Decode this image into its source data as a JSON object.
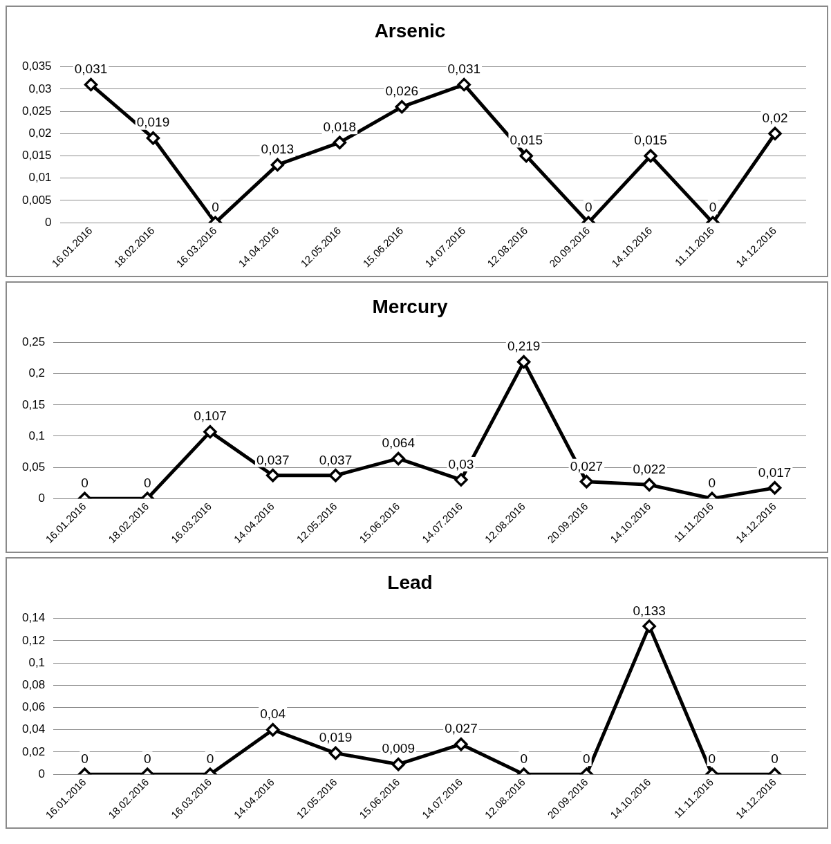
{
  "chart_data": [
    {
      "type": "line",
      "title": "Arsenic",
      "categories": [
        "16.01.2016",
        "18.02.2016",
        "16.03.2016",
        "14.04.2016",
        "12.05.2016",
        "15.06.2016",
        "14.07.2016",
        "12.08.2016",
        "20.09.2016",
        "14.10.2016",
        "11.11.2016",
        "14.12.2016"
      ],
      "series": [
        {
          "color": "#000000",
          "values": [
            0.031,
            0.019,
            0,
            0.013,
            0.018,
            0.026,
            0.031,
            0.015,
            0,
            0.015,
            0,
            0.02
          ],
          "value_labels": [
            "0,031",
            "0,019",
            "0",
            "0,013",
            "0,018",
            "0,026",
            "0,031",
            "0,015",
            "0",
            "0,015",
            "0",
            "0,02"
          ]
        }
      ],
      "ylim": [
        0,
        0.035
      ],
      "yticks": [
        {
          "value": 0,
          "label": "0"
        },
        {
          "value": 0.005,
          "label": "0,005"
        },
        {
          "value": 0.01,
          "label": "0,01"
        },
        {
          "value": 0.015,
          "label": "0,015"
        },
        {
          "value": 0.02,
          "label": "0,02"
        },
        {
          "value": 0.025,
          "label": "0,025"
        },
        {
          "value": 0.03,
          "label": "0,03"
        },
        {
          "value": 0.035,
          "label": "0,035"
        }
      ],
      "grid": "y",
      "legend": false,
      "marker": "diamond",
      "line_style": "solid"
    },
    {
      "type": "line",
      "title": "Mercury",
      "categories": [
        "16.01.2016",
        "18.02.2016",
        "16.03.2016",
        "14.04.2016",
        "12.05.2016",
        "15.06.2016",
        "14.07.2016",
        "12.08.2016",
        "20.09.2016",
        "14.10.2016",
        "11.11.2016",
        "14.12.2016"
      ],
      "series": [
        {
          "color": "#000000",
          "values": [
            0,
            0,
            0.107,
            0.037,
            0.037,
            0.064,
            0.03,
            0.219,
            0.027,
            0.022,
            0,
            0.017
          ],
          "value_labels": [
            "0",
            "0",
            "0,107",
            "0,037",
            "0,037",
            "0,064",
            "0,03",
            "0,219",
            "0,027",
            "0,022",
            "0",
            "0,017"
          ]
        }
      ],
      "ylim": [
        0,
        0.25
      ],
      "yticks": [
        {
          "value": 0,
          "label": "0"
        },
        {
          "value": 0.05,
          "label": "0,05"
        },
        {
          "value": 0.1,
          "label": "0,1"
        },
        {
          "value": 0.15,
          "label": "0,15"
        },
        {
          "value": 0.2,
          "label": "0,2"
        },
        {
          "value": 0.25,
          "label": "0,25"
        }
      ],
      "grid": "y",
      "legend": false,
      "marker": "diamond",
      "line_style": "solid"
    },
    {
      "type": "line",
      "title": "Lead",
      "categories": [
        "16.01.2016",
        "18.02.2016",
        "16.03.2016",
        "14.04.2016",
        "12.05.2016",
        "15.06.2016",
        "14.07.2016",
        "12.08.2016",
        "20.09.2016",
        "14.10.2016",
        "11.11.2016",
        "14.12.2016"
      ],
      "series": [
        {
          "color": "#000000",
          "values": [
            0,
            0,
            0,
            0.04,
            0.019,
            0.009,
            0.027,
            0,
            0,
            0.133,
            0,
            0
          ],
          "value_labels": [
            "0",
            "0",
            "0",
            "0,04",
            "0,019",
            "0,009",
            "0,027",
            "0",
            "0",
            "0,133",
            "0",
            "0"
          ]
        }
      ],
      "ylim": [
        0,
        0.14
      ],
      "yticks": [
        {
          "value": 0,
          "label": "0"
        },
        {
          "value": 0.02,
          "label": "0,02"
        },
        {
          "value": 0.04,
          "label": "0,04"
        },
        {
          "value": 0.06,
          "label": "0,06"
        },
        {
          "value": 0.08,
          "label": "0,08"
        },
        {
          "value": 0.1,
          "label": "0,1"
        },
        {
          "value": 0.12,
          "label": "0,12"
        },
        {
          "value": 0.14,
          "label": "0,14"
        }
      ],
      "grid": "y",
      "legend": false,
      "marker": "diamond",
      "line_style": "solid"
    }
  ]
}
